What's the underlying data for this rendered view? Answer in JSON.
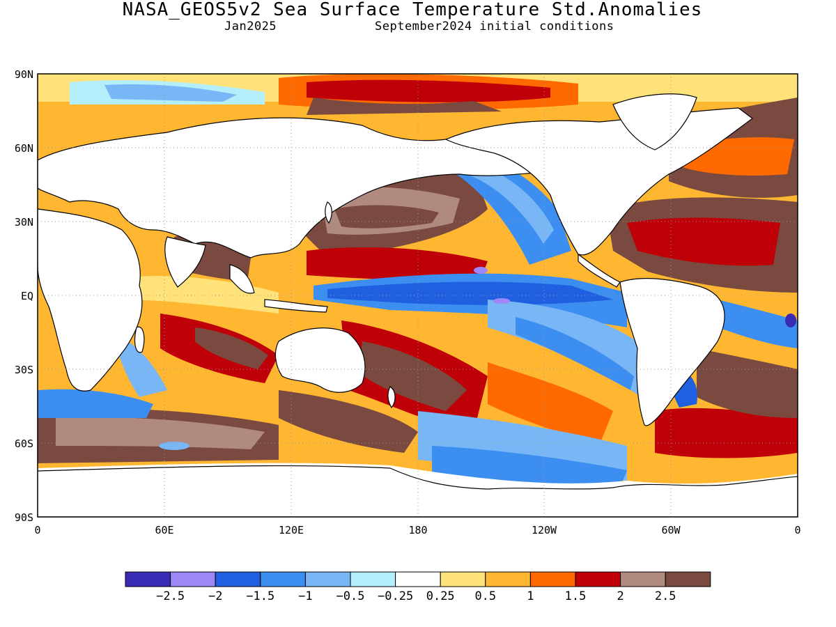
{
  "header": {
    "title": "NASA_GEOS5v2 Sea Surface Temperature Std.Anomalies",
    "month": "Jan2025",
    "init": "September2024 initial conditions"
  },
  "map": {
    "lat_labels": [
      "90N",
      "60N",
      "30N",
      "EQ",
      "30S",
      "60S",
      "90S"
    ],
    "lon_labels": [
      "0",
      "60E",
      "120E",
      "180",
      "120W",
      "60W",
      "0"
    ]
  },
  "colorbar": {
    "colors": [
      "#3a2bb5",
      "#9e86f8",
      "#1f5fe0",
      "#3c8ff0",
      "#78b6f6",
      "#b4eefa",
      "#ffffff",
      "#ffe27a",
      "#ffb732",
      "#ff6a00",
      "#c00008",
      "#b08a80",
      "#7a4a40"
    ],
    "labels": [
      "-2.5",
      "-2",
      "-1.5",
      "-1",
      "-0.5",
      "-0.25",
      "0.25",
      "0.5",
      "1",
      "1.5",
      "2",
      "2.5"
    ]
  },
  "palette": {
    "land": "#ffffff",
    "grid": "#9a9a9a"
  }
}
